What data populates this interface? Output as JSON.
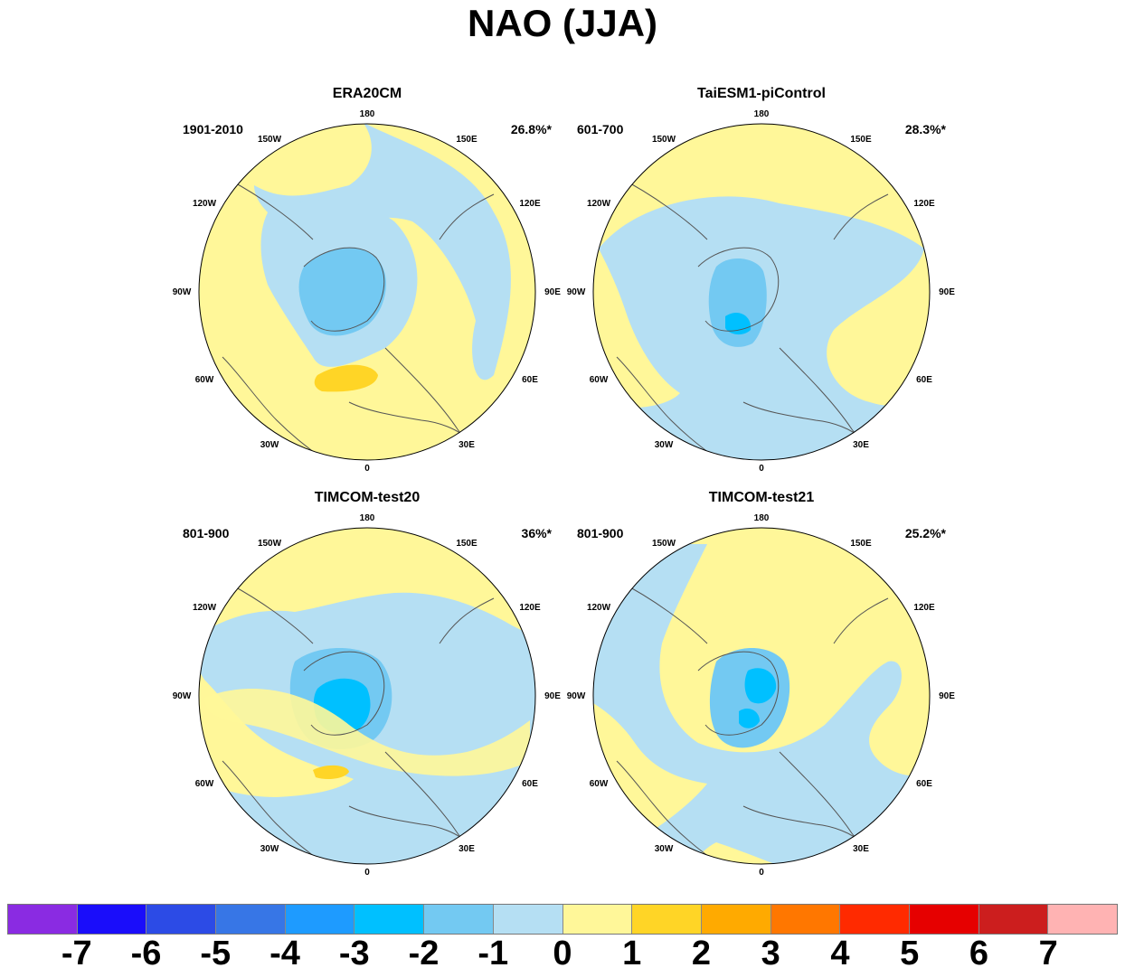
{
  "title": "NAO (JJA)",
  "panels": [
    {
      "title": "ERA20CM",
      "period": "1901-2010",
      "variance": "26.8%*"
    },
    {
      "title": "TaiESM1-piControl",
      "period": "601-700",
      "variance": "28.3%*"
    },
    {
      "title": "TIMCOM-test20",
      "period": "801-900",
      "variance": "36%*"
    },
    {
      "title": "TIMCOM-test21",
      "period": "801-900",
      "variance": "25.2%*"
    }
  ],
  "longitude_labels": {
    "lon_180": "180",
    "lon_150E": "150E",
    "lon_120E": "120E",
    "lon_90E": "90E",
    "lon_60E": "60E",
    "lon_30E": "30E",
    "lon_0": "0",
    "lon_30W": "30W",
    "lon_60W": "60W",
    "lon_90W": "90W",
    "lon_120W": "120W",
    "lon_150W": "150W"
  },
  "colorbar": {
    "labels": [
      "-7",
      "-6",
      "-5",
      "-4",
      "-3",
      "-2",
      "-1",
      "0",
      "1",
      "2",
      "3",
      "4",
      "5",
      "6",
      "7"
    ],
    "colors": [
      "#8a2be2",
      "#1a0dfa",
      "#2c4be6",
      "#3776e6",
      "#1e9bff",
      "#00c0ff",
      "#73c9f2",
      "#b5dff3",
      "#fff799",
      "#ffd526",
      "#ffaa00",
      "#ff7700",
      "#ff2a00",
      "#e60000",
      "#cc1e1e",
      "#ffb3b3"
    ]
  }
}
